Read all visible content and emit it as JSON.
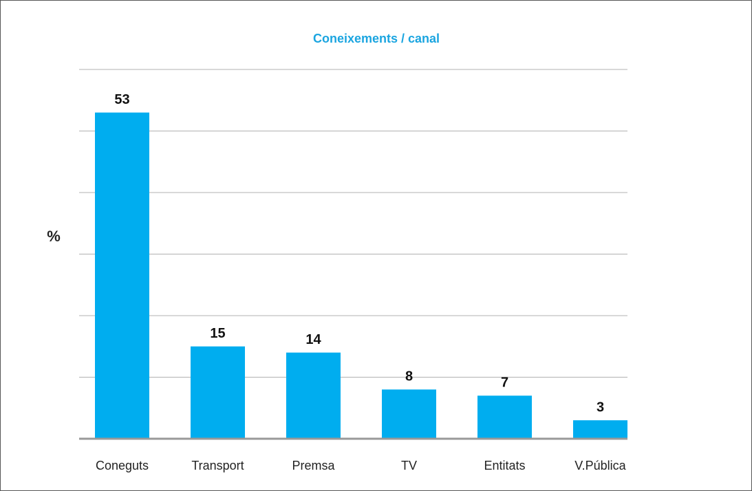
{
  "chart_data": {
    "type": "bar",
    "title": "Coneixements / canal",
    "y_label": "%",
    "categories": [
      "Coneguts",
      "Transport",
      "Premsa",
      "TV",
      "Entitats",
      "V.Pública"
    ],
    "values": [
      53,
      15,
      14,
      8,
      7,
      3
    ],
    "color": "#00adef",
    "ylim": [
      0,
      60
    ],
    "yticks": [
      0,
      10,
      20,
      30,
      40,
      50,
      60
    ],
    "grid": true
  }
}
